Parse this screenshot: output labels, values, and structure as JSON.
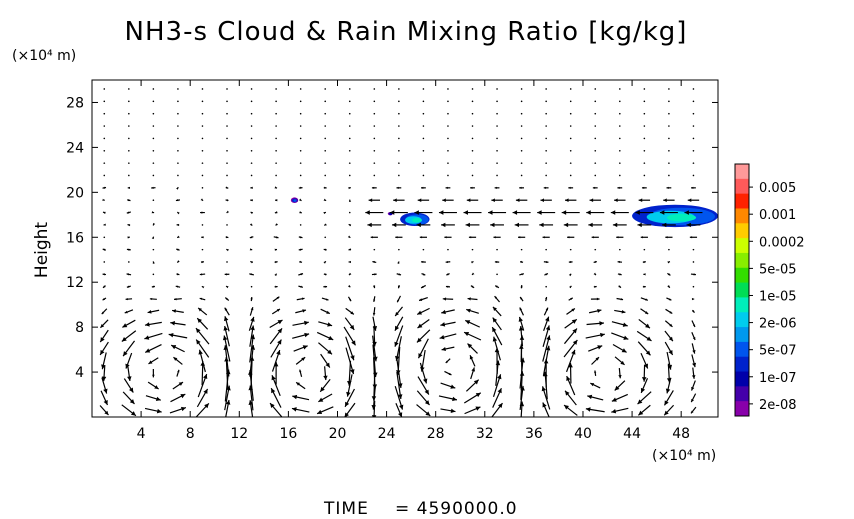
{
  "chart_data": {
    "type": "vector-field-contour",
    "title": "NH3-s Cloud & Rain Mixing Ratio [kg/kg]",
    "xlabel": "",
    "ylabel": "Height",
    "x_unit": "(×10⁴ m)",
    "y_unit": "(×10⁴ m)",
    "xlim": [
      0,
      51
    ],
    "ylim": [
      0,
      30
    ],
    "x_ticks": [
      4,
      8,
      12,
      16,
      20,
      24,
      28,
      32,
      36,
      40,
      44,
      48
    ],
    "y_ticks": [
      4,
      8,
      12,
      16,
      20,
      24,
      28
    ],
    "x_tick_labels": [
      "4",
      "8",
      "12",
      "16",
      "20",
      "24",
      "28",
      "32",
      "36",
      "40",
      "44",
      "48"
    ],
    "y_tick_labels": [
      "4",
      "8",
      "12",
      "16",
      "20",
      "24",
      "28"
    ],
    "time_label": "TIME",
    "time_value": "= 4590000.0",
    "colorbar": {
      "labels": [
        "0.005",
        "0.001",
        "0.0002",
        "5e-05",
        "1e-05",
        "2e-06",
        "5e-07",
        "1e-07",
        "2e-08"
      ],
      "colors": [
        "#ff9999",
        "#ff5a5a",
        "#ff2200",
        "#ff8800",
        "#ffcc00",
        "#ccff00",
        "#88ee00",
        "#33dd00",
        "#00dd55",
        "#00eebb",
        "#00ccee",
        "#0099ee",
        "#0055ee",
        "#0022cc",
        "#0000aa",
        "#4400aa",
        "#8800aa"
      ]
    },
    "clouds": [
      {
        "x": 16.5,
        "y": 19.3,
        "w": 0.6,
        "h": 0.5,
        "level": 12
      },
      {
        "x": 24.3,
        "y": 18.1,
        "w": 0.4,
        "h": 0.3,
        "level": 14
      },
      {
        "x": 26.3,
        "y": 17.6,
        "w": 2.4,
        "h": 1.2,
        "level": 9
      },
      {
        "x": 47.5,
        "y": 17.9,
        "w": 7.0,
        "h": 2.0,
        "level": 9
      }
    ],
    "vortices": [
      {
        "x": 6.5,
        "y": 4,
        "s": 1
      },
      {
        "x": 17.5,
        "y": 4,
        "s": -1
      },
      {
        "x": 29.5,
        "y": 4.5,
        "s": 1
      },
      {
        "x": 41.5,
        "y": 4,
        "s": -1
      }
    ],
    "jet": {
      "y": 18,
      "x_from": 22,
      "x_to": 51
    }
  }
}
